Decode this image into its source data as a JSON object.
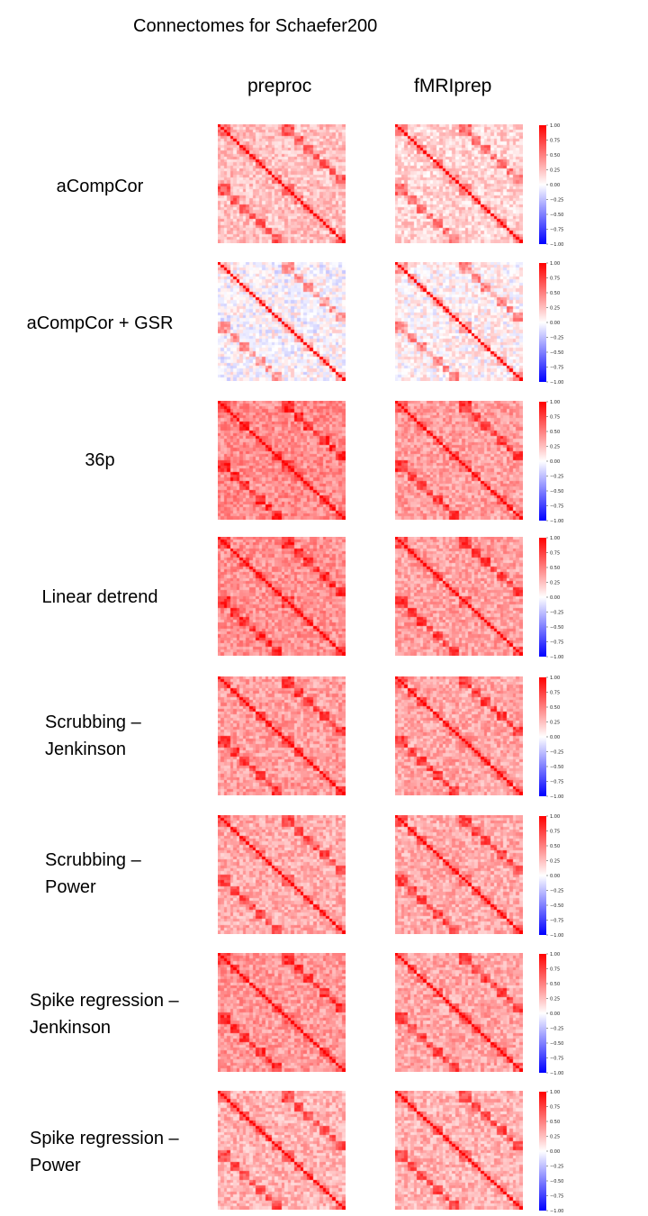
{
  "title": "Connectomes for Schaefer200",
  "columns": [
    "preproc",
    "fMRIprep"
  ],
  "rows": [
    {
      "label_lines": [
        "aCompCor"
      ],
      "align": "center"
    },
    {
      "label_lines": [
        "aCompCor + GSR"
      ],
      "align": "center"
    },
    {
      "label_lines": [
        "36p"
      ],
      "align": "center"
    },
    {
      "label_lines": [
        "Linear detrend"
      ],
      "align": "center"
    },
    {
      "label_lines": [
        "Scrubbing –",
        "Jenkinson"
      ],
      "align": "left"
    },
    {
      "label_lines": [
        "Scrubbing –",
        "Power"
      ],
      "align": "left"
    },
    {
      "label_lines": [
        "Spike regression –",
        "Jenkinson"
      ],
      "align": "left"
    },
    {
      "label_lines": [
        "Spike regression –",
        "Power"
      ],
      "align": "left"
    }
  ],
  "colorbar": {
    "ticks": [
      "1.00",
      "0.75",
      "0.50",
      "0.25",
      "0.00",
      "−0.25",
      "−0.50",
      "−0.75",
      "−1.00"
    ],
    "cmap": "bwr",
    "colors": {
      "positive": "#ff0000",
      "zero": "#ffffff",
      "negative": "#0000ff"
    }
  },
  "chart_data": {
    "type": "heatmap",
    "title": "Connectomes for Schaefer200",
    "xlabel": "",
    "ylabel": "",
    "vlim": [
      -1,
      1
    ],
    "n_regions": 200,
    "columns": [
      "preproc",
      "fMRIprep"
    ],
    "rows": [
      "aCompCor",
      "aCompCor + GSR",
      "36p",
      "Linear detrend",
      "Scrubbing – Jenkinson",
      "Scrubbing – Power",
      "Spike regression – Jenkinson",
      "Spike regression – Power"
    ],
    "approx_mean_correlation": [
      [
        0.25,
        0.18
      ],
      [
        0.03,
        0.08
      ],
      [
        0.45,
        0.38
      ],
      [
        0.43,
        0.37
      ],
      [
        0.38,
        0.35
      ],
      [
        0.33,
        0.33
      ],
      [
        0.4,
        0.35
      ],
      [
        0.3,
        0.3
      ]
    ]
  }
}
